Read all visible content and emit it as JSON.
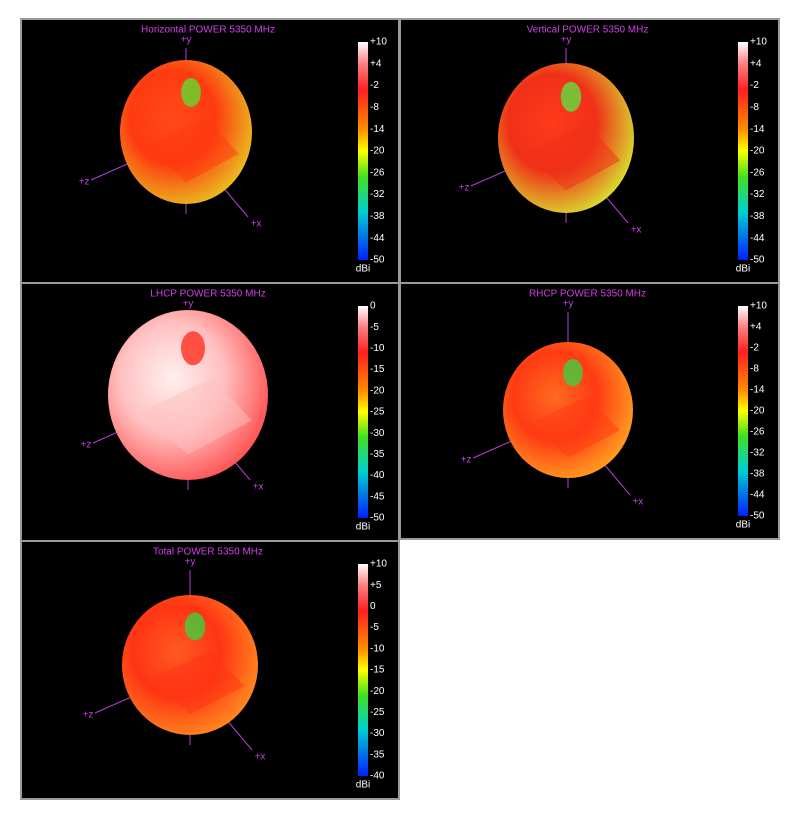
{
  "panels": [
    {
      "title": "Horizontal POWER 5350  MHz",
      "axes": {
        "y": "+y",
        "z": "+z",
        "x": "+x"
      },
      "colorbar": {
        "ticks": [
          "+10",
          "+4",
          "-2",
          "-8",
          "-14",
          "-20",
          "-26",
          "-32",
          "-38",
          "-44",
          "-50"
        ],
        "unit": "dBi"
      }
    },
    {
      "title": "Vertical POWER 5350  MHz",
      "axes": {
        "y": "+y",
        "z": "+z",
        "x": "+x"
      },
      "colorbar": {
        "ticks": [
          "+10",
          "+4",
          "-2",
          "-8",
          "-14",
          "-20",
          "-26",
          "-32",
          "-38",
          "-44",
          "-50"
        ],
        "unit": "dBi"
      }
    },
    {
      "title": "LHCP POWER 5350  MHz",
      "axes": {
        "y": "+y",
        "z": "+z",
        "x": "+x"
      },
      "colorbar": {
        "ticks": [
          "0",
          "-5",
          "-10",
          "-15",
          "-20",
          "-25",
          "-30",
          "-35",
          "-40",
          "-45",
          "-50"
        ],
        "unit": "dBi"
      }
    },
    {
      "title": "RHCP POWER 5350  MHz",
      "axes": {
        "y": "+y",
        "z": "+z",
        "x": "+x"
      },
      "colorbar": {
        "ticks": [
          "+10",
          "+4",
          "-2",
          "-8",
          "-14",
          "-20",
          "-26",
          "-32",
          "-38",
          "-44",
          "-50"
        ],
        "unit": "dBi"
      }
    },
    {
      "title": "Total POWER 5350  MHz",
      "axes": {
        "y": "+y",
        "z": "+z",
        "x": "+x"
      },
      "colorbar": {
        "ticks": [
          "+10",
          "+5",
          "0",
          "-5",
          "-10",
          "-15",
          "-20",
          "-25",
          "-30",
          "-35",
          "-40"
        ],
        "unit": "dBi"
      }
    }
  ]
}
